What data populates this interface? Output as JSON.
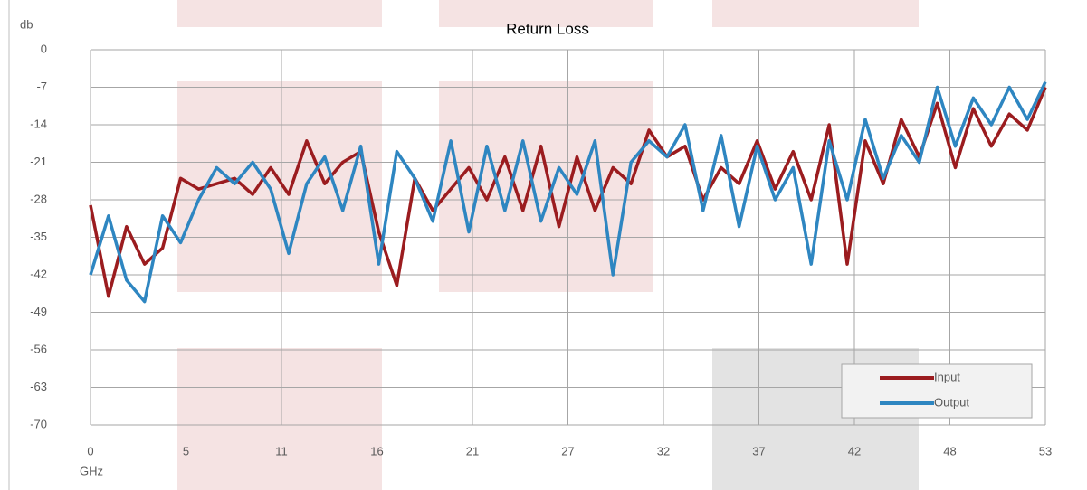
{
  "chart_data": {
    "type": "line",
    "title": "Return Loss",
    "y_label": "db",
    "x_label": "GHz",
    "x": [
      0,
      1,
      2,
      3,
      4,
      5,
      6,
      7,
      8,
      9,
      10,
      11,
      12,
      13,
      14,
      15,
      16,
      17,
      18,
      19,
      20,
      21,
      22,
      23,
      24,
      25,
      26,
      27,
      28,
      29,
      30,
      31,
      32,
      33,
      34,
      35,
      36,
      37,
      38,
      39,
      40,
      41,
      42,
      43,
      44,
      45,
      46,
      47,
      48,
      49,
      50,
      51,
      52,
      53
    ],
    "series": [
      {
        "name": "Input",
        "color": "#9b1c1f",
        "values": [
          -29,
          -46,
          -33,
          -40,
          -37,
          -24,
          -26,
          -25,
          -24,
          -27,
          -22,
          -27,
          -17,
          -25,
          -21,
          -19,
          -34,
          -44,
          -24,
          -30,
          -26,
          -22,
          -28,
          -20,
          -30,
          -18,
          -33,
          -20,
          -30,
          -22,
          -25,
          -15,
          -20,
          -18,
          -28,
          -22,
          -25,
          -17,
          -26,
          -19,
          -28,
          -14,
          -40,
          -17,
          -25,
          -13,
          -20,
          -10,
          -22,
          -11,
          -18,
          -12,
          -15,
          -7
        ]
      },
      {
        "name": "Output",
        "color": "#2e86c1",
        "values": [
          -42,
          -31,
          -43,
          -47,
          -31,
          -36,
          -28,
          -22,
          -25,
          -21,
          -26,
          -38,
          -25,
          -20,
          -30,
          -18,
          -40,
          -19,
          -24,
          -32,
          -17,
          -34,
          -18,
          -30,
          -17,
          -32,
          -22,
          -27,
          -17,
          -42,
          -21,
          -17,
          -20,
          -14,
          -30,
          -16,
          -33,
          -18,
          -28,
          -22,
          -40,
          -17,
          -28,
          -13,
          -24,
          -16,
          -21,
          -7,
          -18,
          -9,
          -14,
          -7,
          -13,
          -6
        ]
      }
    ],
    "xlim": [
      0,
      53
    ],
    "xticks": [
      0,
      {
        "value": 5.3,
        "label": "5"
      },
      {
        "value": 10.6,
        "label": "11"
      },
      {
        "value": 15.9,
        "label": "16"
      },
      {
        "value": 21.2,
        "label": "21"
      },
      {
        "value": 26.5,
        "label": "27"
      },
      {
        "value": 31.8,
        "label": "32"
      },
      {
        "value": 37.1,
        "label": "37"
      },
      {
        "value": 42.4,
        "label": "42"
      },
      {
        "value": 47.7,
        "label": "48"
      },
      53
    ],
    "ylim": [
      -70,
      0
    ],
    "yticks": [
      0,
      -7,
      -14,
      -21,
      -28,
      -35,
      -42,
      -49,
      -56,
      -63,
      -70
    ],
    "grid": true,
    "legend": "lower right"
  }
}
